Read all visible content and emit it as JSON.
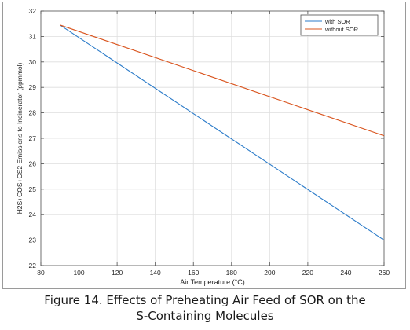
{
  "figure": {
    "caption_line1": "Figure 14. Effects of Preheating Air Feed of SOR on the",
    "caption_line2": "S-Containing Molecules"
  },
  "chart_data": {
    "type": "line",
    "title": "",
    "xlabel": "Air Temperature (°C)",
    "ylabel": "H2S+COS+CS2 Emissions to Incinerator (ppmmol)",
    "xlim": [
      80,
      260
    ],
    "ylim": [
      22,
      32
    ],
    "xticks": [
      80,
      100,
      120,
      140,
      160,
      180,
      200,
      220,
      240,
      260
    ],
    "yticks": [
      22,
      23,
      24,
      25,
      26,
      27,
      28,
      29,
      30,
      31,
      32
    ],
    "grid": true,
    "legend_position": "top-right",
    "series": [
      {
        "name": "with SOR",
        "color": "#2b7bc9",
        "x": [
          90,
          260
        ],
        "y": [
          31.45,
          23.0
        ]
      },
      {
        "name": "without SOR",
        "color": "#d9541e",
        "x": [
          90,
          260
        ],
        "y": [
          31.45,
          27.1
        ]
      }
    ]
  }
}
